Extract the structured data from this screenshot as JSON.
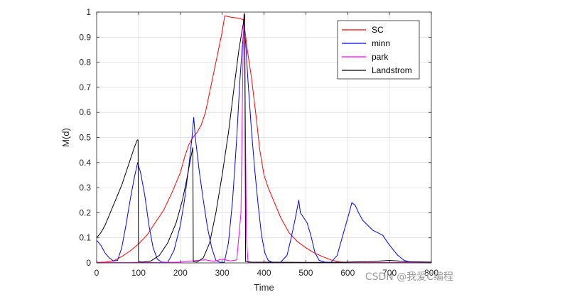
{
  "chart_data": {
    "type": "line",
    "title": "",
    "xlabel": "Time",
    "ylabel": "M(d)",
    "xlim": [
      0,
      800
    ],
    "ylim": [
      0,
      1
    ],
    "xticks": [
      0,
      100,
      200,
      300,
      400,
      500,
      600,
      700,
      800
    ],
    "yticks": [
      0,
      0.1,
      0.2,
      0.3,
      0.4,
      0.5,
      0.6,
      0.7,
      0.8,
      0.9,
      1
    ],
    "ytick_labels": [
      "0",
      "0.1",
      "0.2",
      "0.3",
      "0.4",
      "0.5",
      "0.6",
      "0.7",
      "0.8",
      "0.9",
      "1"
    ],
    "grid": true,
    "legend_position": "top-right",
    "series": [
      {
        "name": "SC",
        "color": "#ff0000",
        "points": [
          [
            0,
            0.002
          ],
          [
            20,
            0.003
          ],
          [
            40,
            0.008
          ],
          [
            60,
            0.025
          ],
          [
            80,
            0.048
          ],
          [
            100,
            0.075
          ],
          [
            120,
            0.11
          ],
          [
            140,
            0.16
          ],
          [
            160,
            0.21
          ],
          [
            180,
            0.28
          ],
          [
            200,
            0.36
          ],
          [
            210,
            0.42
          ],
          [
            220,
            0.47
          ],
          [
            230,
            0.5
          ],
          [
            240,
            0.52
          ],
          [
            250,
            0.55
          ],
          [
            260,
            0.6
          ],
          [
            270,
            0.68
          ],
          [
            280,
            0.76
          ],
          [
            290,
            0.84
          ],
          [
            300,
            0.92
          ],
          [
            306,
            0.985
          ],
          [
            320,
            0.98
          ],
          [
            340,
            0.975
          ],
          [
            350,
            0.97
          ],
          [
            355,
            0.92
          ],
          [
            360,
            0.85
          ],
          [
            370,
            0.74
          ],
          [
            380,
            0.6
          ],
          [
            390,
            0.45
          ],
          [
            400,
            0.35
          ],
          [
            410,
            0.3
          ],
          [
            420,
            0.26
          ],
          [
            440,
            0.18
          ],
          [
            460,
            0.12
          ],
          [
            480,
            0.085
          ],
          [
            500,
            0.06
          ],
          [
            520,
            0.04
          ],
          [
            540,
            0.025
          ],
          [
            560,
            0.012
          ],
          [
            580,
            0.004
          ],
          [
            600,
            0.002
          ],
          [
            800,
            0.001
          ]
        ]
      },
      {
        "name": "minn",
        "color": "#0000ff",
        "points": [
          [
            0,
            0.09
          ],
          [
            10,
            0.07
          ],
          [
            20,
            0.04
          ],
          [
            30,
            0.02
          ],
          [
            40,
            0.008
          ],
          [
            50,
            0.01
          ],
          [
            60,
            0.06
          ],
          [
            70,
            0.15
          ],
          [
            80,
            0.25
          ],
          [
            90,
            0.34
          ],
          [
            98,
            0.4
          ],
          [
            105,
            0.36
          ],
          [
            115,
            0.27
          ],
          [
            125,
            0.15
          ],
          [
            135,
            0.06
          ],
          [
            145,
            0.015
          ],
          [
            155,
            0.003
          ],
          [
            170,
            0.002
          ],
          [
            185,
            0.05
          ],
          [
            200,
            0.15
          ],
          [
            210,
            0.25
          ],
          [
            220,
            0.38
          ],
          [
            228,
            0.5
          ],
          [
            232,
            0.58
          ],
          [
            236,
            0.5
          ],
          [
            245,
            0.37
          ],
          [
            255,
            0.25
          ],
          [
            265,
            0.14
          ],
          [
            275,
            0.06
          ],
          [
            285,
            0.01
          ],
          [
            295,
            0.002
          ],
          [
            305,
            0.002
          ],
          [
            315,
            0.08
          ],
          [
            325,
            0.25
          ],
          [
            335,
            0.5
          ],
          [
            342,
            0.72
          ],
          [
            348,
            0.86
          ],
          [
            352,
            0.93
          ],
          [
            356,
            0.88
          ],
          [
            362,
            0.72
          ],
          [
            370,
            0.53
          ],
          [
            378,
            0.37
          ],
          [
            386,
            0.23
          ],
          [
            394,
            0.11
          ],
          [
            402,
            0.04
          ],
          [
            410,
            0.01
          ],
          [
            420,
            0.002
          ],
          [
            440,
            0.003
          ],
          [
            455,
            0.03
          ],
          [
            465,
            0.1
          ],
          [
            475,
            0.18
          ],
          [
            483,
            0.25
          ],
          [
            487,
            0.2
          ],
          [
            495,
            0.18
          ],
          [
            503,
            0.16
          ],
          [
            512,
            0.11
          ],
          [
            522,
            0.04
          ],
          [
            532,
            0.01
          ],
          [
            545,
            0.003
          ],
          [
            560,
            0.002
          ],
          [
            575,
            0.03
          ],
          [
            590,
            0.12
          ],
          [
            602,
            0.19
          ],
          [
            610,
            0.24
          ],
          [
            618,
            0.23
          ],
          [
            626,
            0.2
          ],
          [
            636,
            0.17
          ],
          [
            648,
            0.15
          ],
          [
            660,
            0.13
          ],
          [
            672,
            0.12
          ],
          [
            684,
            0.11
          ],
          [
            696,
            0.08
          ],
          [
            710,
            0.05
          ],
          [
            720,
            0.03
          ],
          [
            735,
            0.01
          ],
          [
            750,
            0.003
          ],
          [
            770,
            0.001
          ],
          [
            800,
            0.001
          ]
        ]
      },
      {
        "name": "park",
        "color": "#ff00ff",
        "points": [
          [
            0,
            0.001
          ],
          [
            80,
            0.001
          ],
          [
            100,
            0.002
          ],
          [
            150,
            0.001
          ],
          [
            200,
            0.003
          ],
          [
            240,
            0.01
          ],
          [
            260,
            0.012
          ],
          [
            280,
            0.006
          ],
          [
            300,
            0.015
          ],
          [
            320,
            0.008
          ],
          [
            335,
            0.012
          ],
          [
            345,
            0.2
          ],
          [
            350,
            0.85
          ],
          [
            352,
            0.99
          ],
          [
            354,
            0.85
          ],
          [
            358,
            0.1
          ],
          [
            362,
            0.001
          ],
          [
            400,
            0.001
          ],
          [
            800,
            0.001
          ]
        ]
      },
      {
        "name": "Landstrom",
        "color": "#000000",
        "points": [
          [
            0,
            0.1
          ],
          [
            10,
            0.12
          ],
          [
            20,
            0.15
          ],
          [
            30,
            0.19
          ],
          [
            40,
            0.23
          ],
          [
            50,
            0.27
          ],
          [
            60,
            0.31
          ],
          [
            70,
            0.36
          ],
          [
            80,
            0.41
          ],
          [
            90,
            0.46
          ],
          [
            97,
            0.49
          ],
          [
            99,
            0.49
          ],
          [
            100,
            0.005
          ],
          [
            110,
            0.003
          ],
          [
            130,
            0.008
          ],
          [
            150,
            0.03
          ],
          [
            170,
            0.08
          ],
          [
            190,
            0.16
          ],
          [
            205,
            0.25
          ],
          [
            215,
            0.33
          ],
          [
            225,
            0.42
          ],
          [
            230,
            0.46
          ],
          [
            231,
            0.005
          ],
          [
            240,
            0.003
          ],
          [
            255,
            0.02
          ],
          [
            270,
            0.08
          ],
          [
            285,
            0.2
          ],
          [
            300,
            0.35
          ],
          [
            315,
            0.52
          ],
          [
            330,
            0.72
          ],
          [
            340,
            0.85
          ],
          [
            350,
            0.95
          ],
          [
            354,
            0.995
          ],
          [
            356,
            0.005
          ],
          [
            370,
            0.003
          ],
          [
            500,
            0.002
          ],
          [
            560,
            0.002
          ],
          [
            600,
            0.003
          ],
          [
            650,
            0.005
          ],
          [
            680,
            0.008
          ],
          [
            700,
            0.01
          ],
          [
            720,
            0.008
          ],
          [
            740,
            0.005
          ],
          [
            800,
            0.003
          ]
        ]
      }
    ]
  },
  "watermark": "CSDN @我爱C编程"
}
